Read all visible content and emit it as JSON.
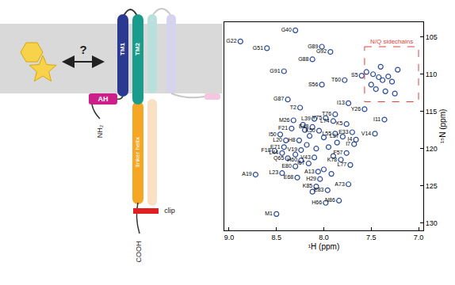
{
  "diagram": {
    "ligand_query": "?",
    "tm1": "TM1",
    "tm2": "TM2",
    "linker": "linker helix",
    "amphipathic_helix": "AH",
    "n_terminus": "NH₂",
    "c_terminus": "COOH",
    "clip": "clip"
  },
  "chart_data": {
    "type": "scatter",
    "color": "#2c4b9b",
    "marker": "circle-open",
    "xlabel": "¹H (ppm)",
    "ylabel": "¹⁵N (ppm)",
    "xlim": [
      9.05,
      6.95
    ],
    "ylim": [
      131,
      103
    ],
    "xticks": [
      {
        "value": 9,
        "label": "9.0"
      },
      {
        "value": 8.5,
        "label": "8.5"
      },
      {
        "value": 8,
        "label": "8.0"
      },
      {
        "value": 7.5,
        "label": "7.5"
      },
      {
        "value": 7,
        "label": "7.0"
      }
    ],
    "yticks": [
      105,
      110,
      115,
      120,
      125,
      130
    ],
    "grid": false,
    "x": [
      8.88,
      8.3,
      8.6,
      8.02,
      7.93,
      8.12,
      8.42,
      7.6,
      7.78,
      8.02,
      8.38,
      8.25,
      7.74,
      7.57,
      7.88,
      7.36,
      7.76,
      8.32,
      8.1,
      7.98,
      7.9,
      8.34,
      8.12,
      8.05,
      7.46,
      7.7,
      7.88,
      7.8,
      7.66,
      7.68,
      8.46,
      8.4,
      8.26,
      8.42,
      8.52,
      8.44,
      8.24,
      8.38,
      7.76,
      7.82,
      8.24,
      8.3,
      7.72,
      8.16,
      8.1,
      8.44,
      8.72,
      8.28,
      8.06,
      8.04,
      7.74,
      8.08,
      7.96,
      7.84,
      7.98,
      8.5,
      8.2,
      8.18,
      8.0,
      7.95,
      8.08,
      7.9,
      8.15,
      8.3,
      8.12,
      7.86,
      8.0,
      7.92,
      8.22,
      7.55,
      7.48,
      7.42,
      7.38,
      7.32,
      7.28,
      7.5,
      7.45,
      7.35,
      7.25,
      7.22,
      7.4
    ],
    "y": [
      105.6,
      104.1,
      106.5,
      106.3,
      107.0,
      108.0,
      109.6,
      110.2,
      110.8,
      111.4,
      113.4,
      114.5,
      113.9,
      114.7,
      115.4,
      116.1,
      116.7,
      116.2,
      116.0,
      115.9,
      116.3,
      117.3,
      117.1,
      117.6,
      118.0,
      117.8,
      118.0,
      118.4,
      118.8,
      119.4,
      118.1,
      118.9,
      118.9,
      119.8,
      120.3,
      120.6,
      120.2,
      121.3,
      120.6,
      121.5,
      121.6,
      122.4,
      122.2,
      122.0,
      121.2,
      123.3,
      123.5,
      123.9,
      123.1,
      124.1,
      124.8,
      125.1,
      125.6,
      127.0,
      127.3,
      128.8,
      117.5,
      119.5,
      118.5,
      119.8,
      120.0,
      121.0,
      118.3,
      120.8,
      125.8,
      119.2,
      122.8,
      123.4,
      116.8,
      109.7,
      110.0,
      110.4,
      110.8,
      110.3,
      111.0,
      111.4,
      112.0,
      112.3,
      112.6,
      109.4,
      109.0
    ],
    "labels": [
      "G22",
      "G40",
      "G51",
      "G89",
      "G92",
      "G88",
      "G91",
      "S5",
      "T60",
      "S56",
      "G87",
      "T2",
      "I13",
      "Y26",
      "T76",
      "I11",
      "K5",
      "M26",
      "L39",
      "Y75",
      "L74",
      "F21",
      "E48",
      "K50",
      "V14",
      "E33",
      "L55",
      "L37",
      "I4",
      "I7",
      "I50",
      "L20",
      "H8",
      "E71",
      "F18",
      "L44",
      "V19",
      "Q65",
      "F57",
      "K78",
      "H60",
      "E80",
      "L77",
      "I67",
      "V43",
      "L23",
      "A19",
      "E68",
      "A13",
      "H29",
      "A73",
      "K85",
      "E83",
      "N86",
      "H66",
      "M1",
      null,
      null,
      null,
      null,
      null,
      null,
      null,
      null,
      null,
      null,
      null,
      null,
      null,
      null,
      null,
      null,
      null,
      null,
      null,
      null,
      null,
      null,
      null,
      null,
      null
    ],
    "annotations": [
      {
        "text": "N/Q sidechains",
        "color": "#e0413a",
        "x0": 7.57,
        "x1": 7.0,
        "y0": 106.3,
        "y1": 113.7
      }
    ]
  }
}
